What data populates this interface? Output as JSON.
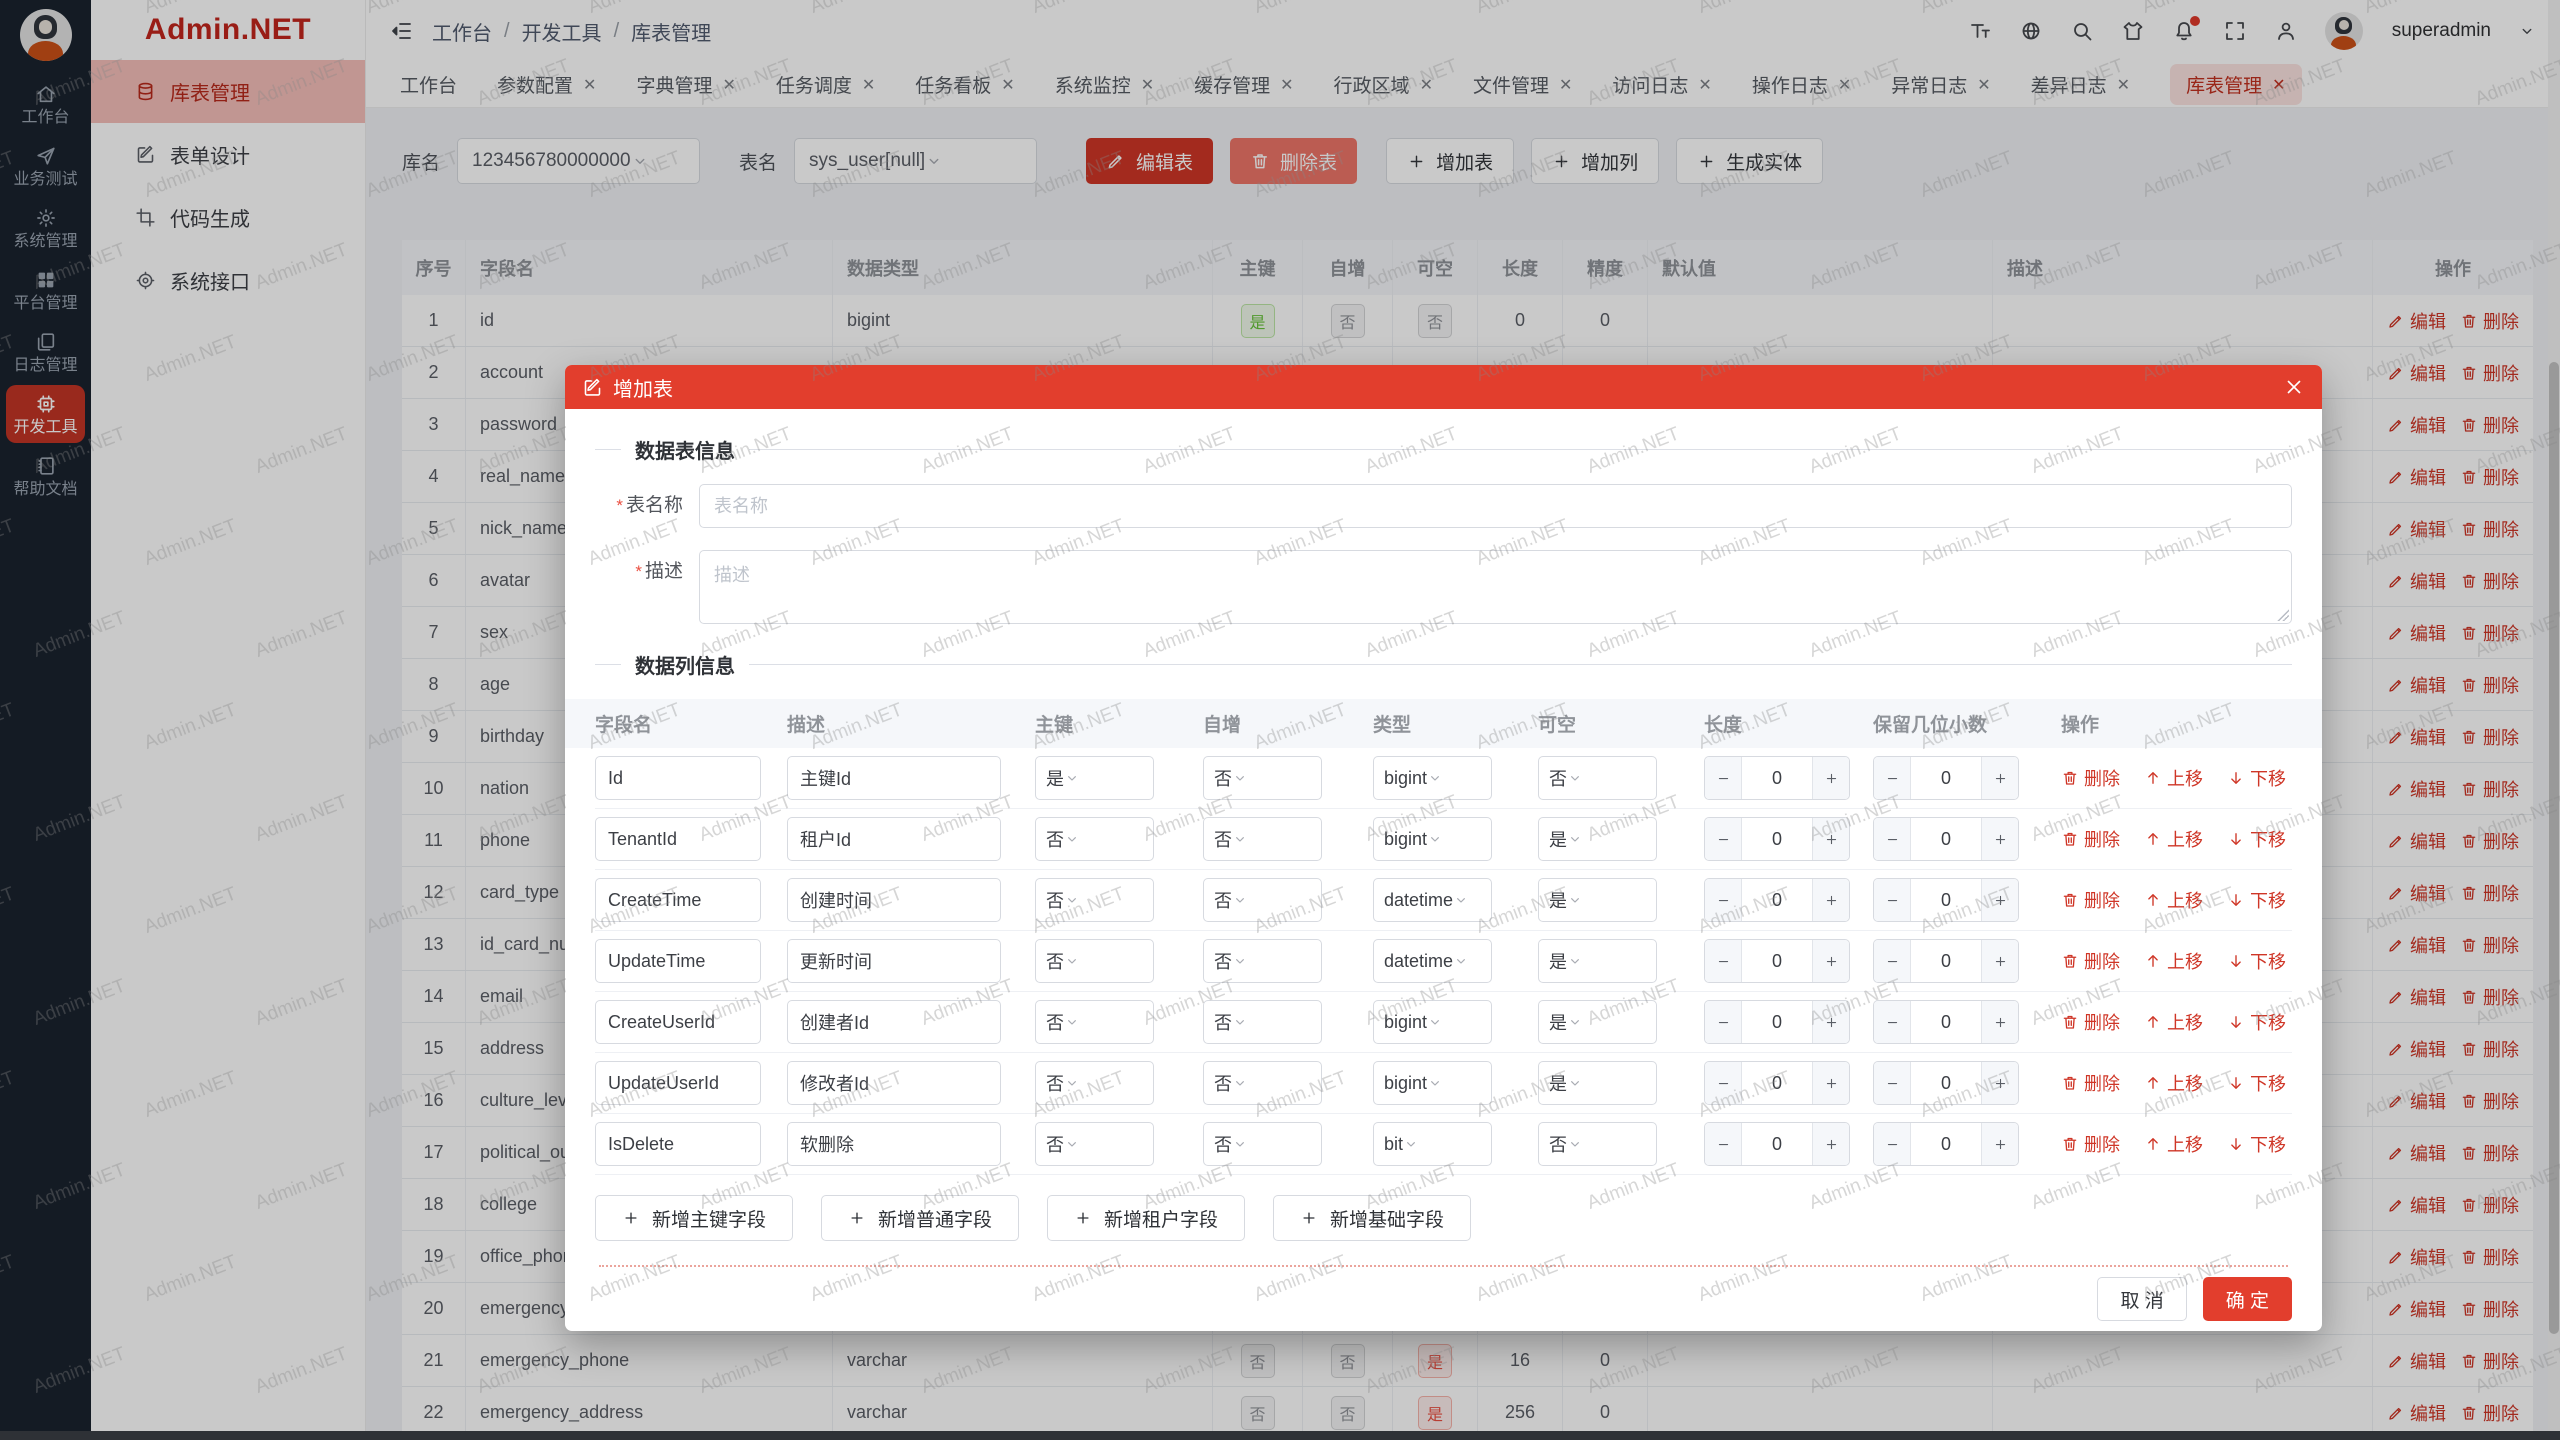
{
  "page": {
    "watermark": "Admin.NET",
    "logo": "Admin.NET"
  },
  "colors": {
    "primary": "#cf3627",
    "modal_header": "#e23e2d",
    "rail_bg": "#1a232e",
    "rail_active": "#c33425",
    "tag_success": "#67c23a",
    "tag_info": "#909399",
    "tag_danger": "#ea4f41"
  },
  "rail": {
    "items": [
      {
        "key": "workbench",
        "label": "工作台",
        "icon": "home",
        "active": false
      },
      {
        "key": "business-test",
        "label": "业务测试",
        "icon": "send",
        "active": false
      },
      {
        "key": "system-mgmt",
        "label": "系统管理",
        "icon": "gear",
        "active": false
      },
      {
        "key": "platform-mgmt",
        "label": "平台管理",
        "icon": "grid",
        "active": false
      },
      {
        "key": "log-mgmt",
        "label": "日志管理",
        "icon": "docs",
        "active": false
      },
      {
        "key": "dev-tools",
        "label": "开发工具",
        "icon": "cpu",
        "active": true
      },
      {
        "key": "help-docs",
        "label": "帮助文档",
        "icon": "book",
        "active": false
      }
    ]
  },
  "sidebar": {
    "items": [
      {
        "key": "table-mgmt",
        "label": "库表管理",
        "icon": "database",
        "active": true
      },
      {
        "key": "form-design",
        "label": "表单设计",
        "icon": "editsq",
        "active": false
      },
      {
        "key": "code-gen",
        "label": "代码生成",
        "icon": "crop",
        "active": false
      },
      {
        "key": "system-api",
        "label": "系统接口",
        "icon": "target",
        "active": false
      }
    ]
  },
  "header": {
    "breadcrumb": [
      "工作台",
      "开发工具",
      "库表管理"
    ],
    "username": "superadmin",
    "icons": [
      "fontsize",
      "globe",
      "search",
      "shirt",
      "bell",
      "expand",
      "user"
    ]
  },
  "tabs": [
    {
      "key": "workbench",
      "label": "工作台",
      "closable": false,
      "active": false
    },
    {
      "key": "param-config",
      "label": "参数配置",
      "closable": true,
      "active": false
    },
    {
      "key": "dict-mgmt",
      "label": "字典管理",
      "closable": true,
      "active": false
    },
    {
      "key": "task-schedule",
      "label": "任务调度",
      "closable": true,
      "active": false
    },
    {
      "key": "task-board",
      "label": "任务看板",
      "closable": true,
      "active": false
    },
    {
      "key": "system-monitor",
      "label": "系统监控",
      "closable": true,
      "active": false
    },
    {
      "key": "cache-mgmt",
      "label": "缓存管理",
      "closable": true,
      "active": false
    },
    {
      "key": "admin-region",
      "label": "行政区域",
      "closable": true,
      "active": false
    },
    {
      "key": "file-mgmt",
      "label": "文件管理",
      "closable": true,
      "active": false
    },
    {
      "key": "access-log",
      "label": "访问日志",
      "closable": true,
      "active": false
    },
    {
      "key": "op-log",
      "label": "操作日志",
      "closable": true,
      "active": false
    },
    {
      "key": "error-log",
      "label": "异常日志",
      "closable": true,
      "active": false
    },
    {
      "key": "diff-log",
      "label": "差异日志",
      "closable": true,
      "active": false
    },
    {
      "key": "table-mgmt",
      "label": "库表管理",
      "closable": true,
      "active": true
    }
  ],
  "toolbar": {
    "db_label": "库名",
    "db_value": "123456780000000",
    "table_label": "表名",
    "table_value": "sys_user[null]",
    "edit_table_btn": "编辑表",
    "delete_table_btn": "删除表",
    "add_table_btn": "增加表",
    "add_column_btn": "增加列",
    "gen_entity_btn": "生成实体"
  },
  "grid": {
    "headers": [
      "序号",
      "字段名",
      "数据类型",
      "主键",
      "自增",
      "可空",
      "长度",
      "精度",
      "默认值",
      "描述",
      "操作"
    ],
    "edit_label": "编辑",
    "delete_label": "删除",
    "rows": [
      {
        "no": "1",
        "name": "id",
        "type": "bigint",
        "pk": {
          "t": "是",
          "k": "s"
        },
        "inc": {
          "t": "否",
          "k": "i"
        },
        "nul": {
          "t": "否",
          "k": "i"
        },
        "len": "0",
        "prec": "0",
        "def": "",
        "desc": ""
      },
      {
        "no": "2",
        "name": "account",
        "type": "",
        "pk": null,
        "inc": null,
        "nul": null,
        "len": "",
        "prec": "",
        "def": "",
        "desc": ""
      },
      {
        "no": "3",
        "name": "password",
        "type": "",
        "pk": null,
        "inc": null,
        "nul": null,
        "len": "",
        "prec": "",
        "def": "",
        "desc": ""
      },
      {
        "no": "4",
        "name": "real_name",
        "type": "",
        "pk": null,
        "inc": null,
        "nul": null,
        "len": "",
        "prec": "",
        "def": "",
        "desc": ""
      },
      {
        "no": "5",
        "name": "nick_name",
        "type": "",
        "pk": null,
        "inc": null,
        "nul": null,
        "len": "",
        "prec": "",
        "def": "",
        "desc": ""
      },
      {
        "no": "6",
        "name": "avatar",
        "type": "",
        "pk": null,
        "inc": null,
        "nul": null,
        "len": "",
        "prec": "",
        "def": "",
        "desc": ""
      },
      {
        "no": "7",
        "name": "sex",
        "type": "",
        "pk": null,
        "inc": null,
        "nul": null,
        "len": "",
        "prec": "",
        "def": "",
        "desc": ""
      },
      {
        "no": "8",
        "name": "age",
        "type": "",
        "pk": null,
        "inc": null,
        "nul": null,
        "len": "",
        "prec": "",
        "def": "",
        "desc": ""
      },
      {
        "no": "9",
        "name": "birthday",
        "type": "",
        "pk": null,
        "inc": null,
        "nul": null,
        "len": "",
        "prec": "",
        "def": "",
        "desc": ""
      },
      {
        "no": "10",
        "name": "nation",
        "type": "",
        "pk": null,
        "inc": null,
        "nul": null,
        "len": "",
        "prec": "",
        "def": "",
        "desc": ""
      },
      {
        "no": "11",
        "name": "phone",
        "type": "",
        "pk": null,
        "inc": null,
        "nul": null,
        "len": "",
        "prec": "",
        "def": "",
        "desc": ""
      },
      {
        "no": "12",
        "name": "card_type",
        "type": "",
        "pk": null,
        "inc": null,
        "nul": null,
        "len": "",
        "prec": "",
        "def": "",
        "desc": ""
      },
      {
        "no": "13",
        "name": "id_card_nu",
        "type": "",
        "pk": null,
        "inc": null,
        "nul": null,
        "len": "",
        "prec": "",
        "def": "",
        "desc": ""
      },
      {
        "no": "14",
        "name": "email",
        "type": "",
        "pk": null,
        "inc": null,
        "nul": null,
        "len": "",
        "prec": "",
        "def": "",
        "desc": ""
      },
      {
        "no": "15",
        "name": "address",
        "type": "",
        "pk": null,
        "inc": null,
        "nul": null,
        "len": "",
        "prec": "",
        "def": "",
        "desc": ""
      },
      {
        "no": "16",
        "name": "culture_lev",
        "type": "",
        "pk": null,
        "inc": null,
        "nul": null,
        "len": "",
        "prec": "",
        "def": "",
        "desc": ""
      },
      {
        "no": "17",
        "name": "political_ou",
        "type": "",
        "pk": null,
        "inc": null,
        "nul": null,
        "len": "",
        "prec": "",
        "def": "",
        "desc": ""
      },
      {
        "no": "18",
        "name": "college",
        "type": "",
        "pk": null,
        "inc": null,
        "nul": null,
        "len": "",
        "prec": "",
        "def": "",
        "desc": ""
      },
      {
        "no": "19",
        "name": "office_phon",
        "type": "",
        "pk": null,
        "inc": null,
        "nul": null,
        "len": "",
        "prec": "",
        "def": "",
        "desc": ""
      },
      {
        "no": "20",
        "name": "emergency",
        "type": "",
        "pk": null,
        "inc": null,
        "nul": null,
        "len": "",
        "prec": "",
        "def": "",
        "desc": ""
      },
      {
        "no": "21",
        "name": "emergency_phone",
        "type": "varchar",
        "pk": {
          "t": "否",
          "k": "i"
        },
        "inc": {
          "t": "否",
          "k": "i"
        },
        "nul": {
          "t": "是",
          "k": "d"
        },
        "len": "16",
        "prec": "0",
        "def": "",
        "desc": ""
      },
      {
        "no": "22",
        "name": "emergency_address",
        "type": "varchar",
        "pk": {
          "t": "否",
          "k": "i"
        },
        "inc": {
          "t": "否",
          "k": "i"
        },
        "nul": {
          "t": "是",
          "k": "d"
        },
        "len": "256",
        "prec": "0",
        "def": "",
        "desc": ""
      }
    ]
  },
  "modal": {
    "title": "增加表",
    "table_info_section": "数据表信息",
    "name_label": "表名称",
    "name_placeholder": "表名称",
    "desc_label": "描述",
    "desc_placeholder": "描述",
    "columns_section": "数据列信息",
    "col_headers": [
      "字段名",
      "描述",
      "主键",
      "自增",
      "类型",
      "可空",
      "长度",
      "保留几位小数",
      "操作"
    ],
    "row_actions": {
      "delete": "删除",
      "up": "上移",
      "down": "下移"
    },
    "rows": [
      {
        "name": "Id",
        "desc": "主键Id",
        "pk": "是",
        "inc": "否",
        "type": "bigint",
        "nul": "否",
        "len": "0",
        "dec": "0"
      },
      {
        "name": "TenantId",
        "desc": "租户Id",
        "pk": "否",
        "inc": "否",
        "type": "bigint",
        "nul": "是",
        "len": "0",
        "dec": "0"
      },
      {
        "name": "CreateTime",
        "desc": "创建时间",
        "pk": "否",
        "inc": "否",
        "type": "datetime",
        "nul": "是",
        "len": "0",
        "dec": "0"
      },
      {
        "name": "UpdateTime",
        "desc": "更新时间",
        "pk": "否",
        "inc": "否",
        "type": "datetime",
        "nul": "是",
        "len": "0",
        "dec": "0"
      },
      {
        "name": "CreateUserId",
        "desc": "创建者Id",
        "pk": "否",
        "inc": "否",
        "type": "bigint",
        "nul": "是",
        "len": "0",
        "dec": "0"
      },
      {
        "name": "UpdateUserId",
        "desc": "修改者Id",
        "pk": "否",
        "inc": "否",
        "type": "bigint",
        "nul": "是",
        "len": "0",
        "dec": "0"
      },
      {
        "name": "IsDelete",
        "desc": "软删除",
        "pk": "否",
        "inc": "否",
        "type": "bit",
        "nul": "否",
        "len": "0",
        "dec": "0"
      }
    ],
    "add_buttons": [
      "新增主键字段",
      "新增普通字段",
      "新增租户字段",
      "新增基础字段"
    ],
    "cancel": "取 消",
    "confirm": "确 定"
  }
}
